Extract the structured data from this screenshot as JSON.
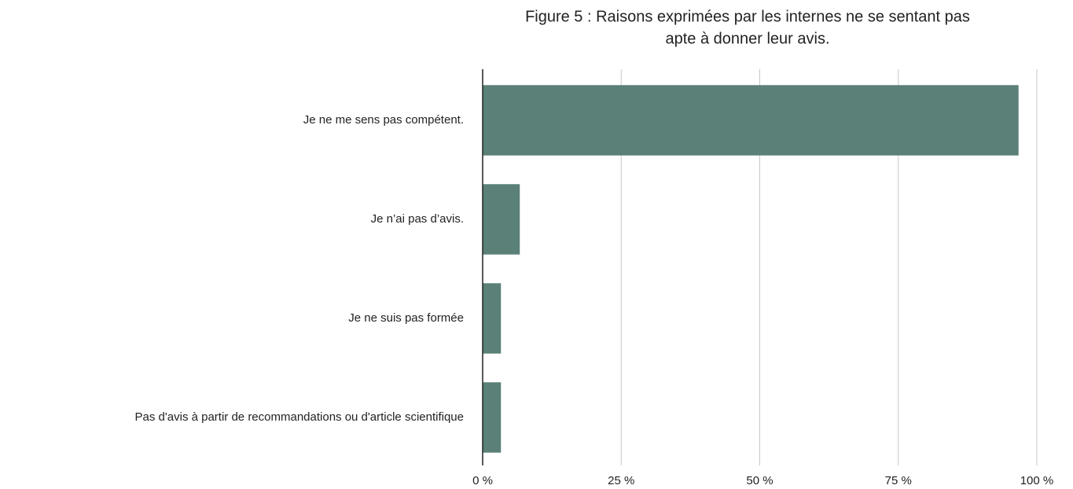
{
  "chart_data": {
    "type": "bar",
    "orientation": "horizontal",
    "title": [
      "Figure 5 : Raisons exprimées par les internes ne se sentant pas",
      "apte à donner leur avis."
    ],
    "categories": [
      "Je ne me sens pas compétent.",
      "Je n’ai pas d’avis.",
      "Je ne suis pas formée",
      "Pas d'avis à partir de recommandations ou d'article scientifique"
    ],
    "values": [
      96.7,
      6.7,
      3.3,
      3.3
    ],
    "color": "#5a8078",
    "xlim": [
      0,
      100
    ],
    "xticks": [
      {
        "value": 0,
        "label": "0 %"
      },
      {
        "value": 25,
        "label": "25 %"
      },
      {
        "value": 50,
        "label": "50 %"
      },
      {
        "value": 75,
        "label": "75 %"
      },
      {
        "value": 100,
        "label": "100 %"
      }
    ],
    "grid": true
  }
}
